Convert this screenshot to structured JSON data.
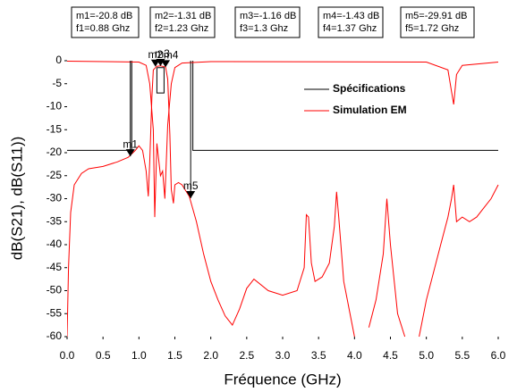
{
  "chart_data": {
    "type": "line",
    "xlabel": "Fréquence (GHz)",
    "ylabel": "dB(S21), dB(S11))",
    "xlim": [
      0,
      6
    ],
    "ylim": [
      -60,
      0
    ],
    "xticks": [
      {
        "value": 0,
        "label": "0.0"
      },
      0.5,
      {
        "value": 1,
        "label": "1.0"
      },
      1.5,
      {
        "value": 2,
        "label": "2.0"
      },
      2.5,
      {
        "value": 3,
        "label": "3.0"
      },
      3.5,
      {
        "value": 4,
        "label": "4.0"
      },
      4.5,
      {
        "value": 5,
        "label": "5.0"
      },
      5.5,
      {
        "value": 6,
        "label": "6.0"
      }
    ],
    "yticks": [
      0,
      -5,
      -10,
      -15,
      -20,
      -25,
      -30,
      -35,
      -40,
      -45,
      -50,
      -55,
      -60
    ],
    "grid": false,
    "series": [
      {
        "name": "Spécifications",
        "color": "#000000",
        "x": [
          0,
          0.9,
          0.9,
          null,
          1.25,
          1.35,
          1.35,
          1.25,
          1.25,
          null,
          1.75,
          1.75,
          6
        ],
        "values": [
          -19.5,
          -19.5,
          0,
          null,
          -1.5,
          -1.5,
          -7,
          -7,
          -1.5,
          null,
          0,
          -19.5,
          -19.5
        ]
      },
      {
        "name": "Simulation EM",
        "color": "#ff0000",
        "x": [
          0,
          0.02,
          0.05,
          0.1,
          0.2,
          0.3,
          0.5,
          0.7,
          0.85,
          0.95,
          1.0,
          1.05,
          1.1,
          1.13,
          1.15,
          1.18,
          1.2,
          1.25,
          1.3,
          1.37,
          1.4,
          1.43,
          1.45,
          1.48,
          1.5,
          1.55,
          1.6,
          1.7,
          1.8,
          1.9,
          2.0,
          2.1,
          2.2,
          2.3,
          2.4,
          2.5,
          2.6,
          2.8,
          3.0,
          3.2,
          3.3,
          3.33,
          3.36,
          3.4,
          3.45,
          3.55,
          3.65,
          3.72,
          3.75,
          3.78,
          3.85,
          3.95,
          4.0,
          null,
          4.2,
          4.3,
          4.4,
          4.45,
          4.5,
          4.6,
          4.7,
          null,
          4.9,
          5.0,
          5.2,
          5.3,
          5.35,
          5.38,
          5.42,
          5.5,
          5.6,
          5.7,
          5.8,
          5.9,
          6.0
        ],
        "values": [
          -60,
          -45,
          -33,
          -27,
          -24.5,
          -23.5,
          -23,
          -22,
          -21,
          -19.5,
          -18.5,
          -19.5,
          -24,
          -29.5,
          -22,
          -8,
          -2,
          -1.2,
          -1.1,
          -1.4,
          -4,
          -16,
          -28,
          -31,
          -27,
          -26.5,
          -27,
          -29.5,
          -35,
          -42,
          -48,
          -52,
          -55.5,
          -57.5,
          -54,
          -49.5,
          -47.5,
          -50,
          -51,
          -50,
          -45,
          -33.5,
          -34,
          -44,
          -48,
          -47,
          -44,
          -36,
          -28.5,
          -34,
          -48,
          -56,
          -60,
          null,
          -58,
          -52,
          -42,
          -30,
          -40,
          -55,
          -60,
          null,
          -60,
          -52,
          -40,
          -34,
          -30,
          -27,
          -35,
          -34,
          -35,
          -34,
          -32,
          -30,
          -27
        ]
      },
      {
        "color": "#ff0000",
        "x": [
          0,
          1.0,
          1.1,
          1.15,
          1.2,
          1.22,
          1.25,
          1.3,
          1.33,
          1.36,
          1.4,
          1.45,
          1.5,
          1.6,
          2.0,
          5.0,
          5.3,
          5.38,
          5.42,
          5.5,
          6.0
        ],
        "values": [
          -0.1,
          -0.3,
          -1,
          -5,
          -15,
          -34,
          -18,
          -25,
          -24,
          -30,
          -14,
          -5,
          -1.5,
          -0.5,
          -0.2,
          -0.3,
          -2,
          -9.5,
          -3,
          -1,
          -0.3
        ]
      }
    ],
    "markers": [
      {
        "name": "m1",
        "x": 0.88,
        "y": -20.8,
        "lines": [
          "m1=-20.8 dB",
          "f1=0.88 Ghz"
        ]
      },
      {
        "name": "m2",
        "x": 1.23,
        "y": -1.31,
        "lines": [
          "m2=-1.31 dB",
          "f2=1.23 Ghz"
        ]
      },
      {
        "name": "m3",
        "x": 1.3,
        "y": -1.16,
        "lines": [
          "m3=-1.16 dB",
          "f3=1.3 Ghz"
        ]
      },
      {
        "name": "m4",
        "x": 1.37,
        "y": -1.43,
        "lines": [
          "m4=-1.43 dB",
          "f4=1.37 Ghz"
        ]
      },
      {
        "name": "m5",
        "x": 1.72,
        "y": -29.91,
        "lines": [
          "m5=-29.91 dB",
          "f5=1.72 Ghz"
        ]
      }
    ]
  }
}
